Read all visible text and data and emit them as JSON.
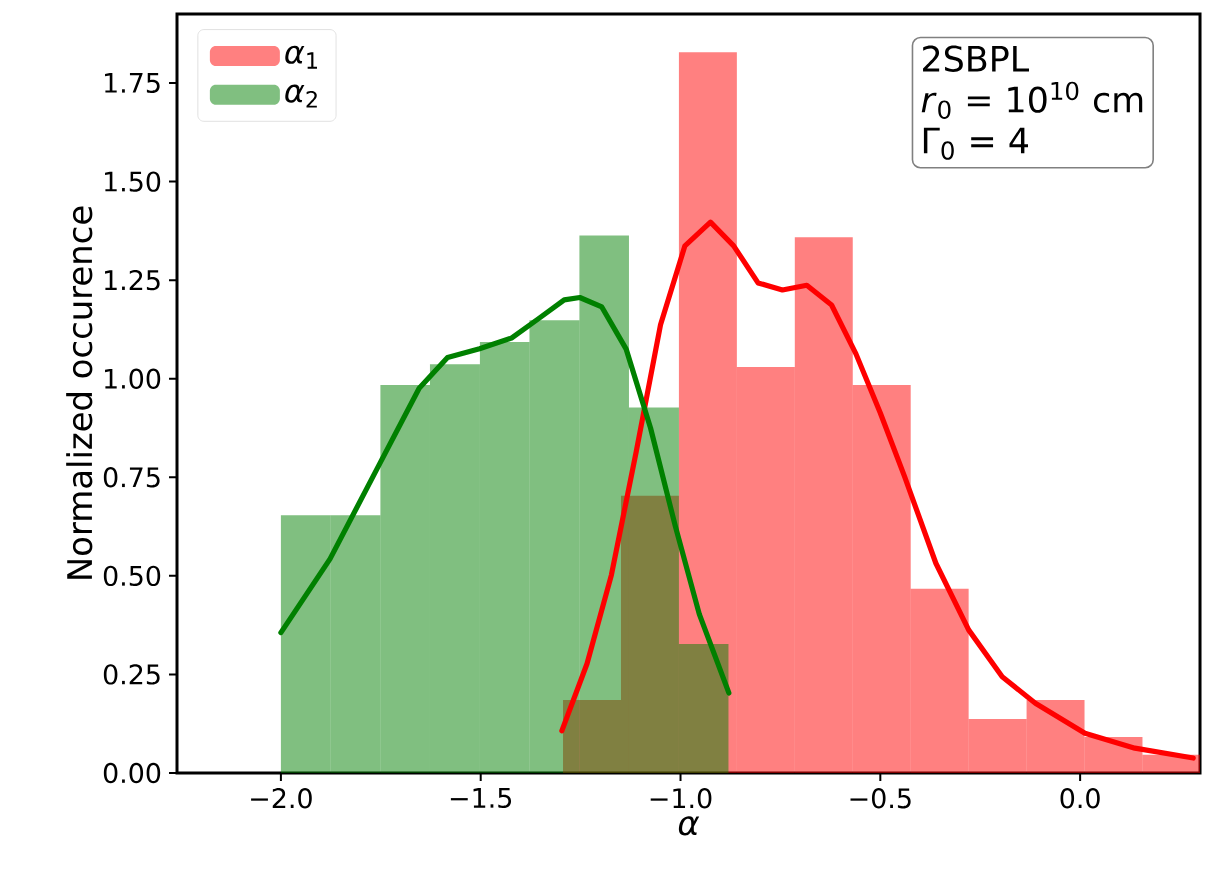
{
  "chart_data": {
    "type": "histogram",
    "xlabel": "*α*",
    "ylabel": "Normalized occurence",
    "xlim": [
      -2.26,
      0.3
    ],
    "ylim": [
      0,
      1.925
    ],
    "xticks": [
      {
        "value": -2.0,
        "label": "−2.0"
      },
      {
        "value": -1.5,
        "label": "−1.5"
      },
      {
        "value": -1.0,
        "label": "−1.0"
      },
      {
        "value": -0.5,
        "label": "−0.5"
      },
      {
        "value": 0.0,
        "label": "0.0"
      }
    ],
    "yticks": [
      {
        "value": 0,
        "label": "0.00"
      },
      {
        "value": 0.25,
        "label": "0.25"
      },
      {
        "value": 0.5,
        "label": "0.50"
      },
      {
        "value": 0.75,
        "label": "0.75"
      },
      {
        "value": 1.0,
        "label": "1.00"
      },
      {
        "value": 1.25,
        "label": "1.25"
      },
      {
        "value": 1.5,
        "label": "1.50"
      },
      {
        "value": 1.75,
        "label": "1.75"
      }
    ],
    "legend": "top left",
    "annotations": [
      "2SBPL",
      "*r*$_{0}$ = 10$^{10}$ cm",
      "Γ$_{0}$ = 4"
    ],
    "series": [
      {
        "name": "*α*$_{1}$",
        "color": "#ff8080",
        "bins": [
          -1.294,
          -1.149,
          -1.004,
          -0.859,
          -0.714,
          -0.569,
          -0.424,
          -0.279,
          -0.134,
          0.011,
          0.156,
          0.3
        ],
        "values": [
          0.185,
          0.703,
          1.828,
          1.03,
          1.359,
          0.984,
          0.467,
          0.137,
          0.185,
          0.091,
          0.046
        ]
      },
      {
        "name": "*α*$_{2}$",
        "color": "#80bf80",
        "bins": [
          -2.0,
          -1.876,
          -1.751,
          -1.627,
          -1.502,
          -1.378,
          -1.253,
          -1.129,
          -1.004,
          -0.88
        ],
        "values": [
          0.654,
          0.654,
          0.984,
          1.037,
          1.093,
          1.148,
          1.363,
          0.927,
          0.327
        ]
      },
      {
        "type": "line",
        "color": "#ff0000",
        "x": [
          -1.297,
          -1.234,
          -1.173,
          -1.111,
          -1.05,
          -0.989,
          -0.925,
          -0.867,
          -0.806,
          -0.745,
          -0.684,
          -0.622,
          -0.561,
          -0.5,
          -0.439,
          -0.361,
          -0.279,
          -0.195,
          -0.112,
          0.012,
          0.137,
          0.283
        ],
        "values": [
          0.107,
          0.277,
          0.502,
          0.814,
          1.137,
          1.337,
          1.397,
          1.337,
          1.243,
          1.225,
          1.237,
          1.187,
          1.063,
          0.913,
          0.751,
          0.532,
          0.363,
          0.244,
          0.177,
          0.101,
          0.063,
          0.038
        ]
      },
      {
        "type": "line",
        "color": "#008000",
        "x": [
          -2.0,
          -1.877,
          -1.752,
          -1.654,
          -1.583,
          -1.503,
          -1.423,
          -1.353,
          -1.291,
          -1.252,
          -1.197,
          -1.136,
          -1.075,
          -1.013,
          -0.953,
          -0.879
        ],
        "values": [
          0.356,
          0.543,
          0.786,
          0.976,
          1.054,
          1.076,
          1.103,
          1.154,
          1.2,
          1.206,
          1.182,
          1.075,
          0.875,
          0.626,
          0.403,
          0.203
        ]
      }
    ]
  }
}
